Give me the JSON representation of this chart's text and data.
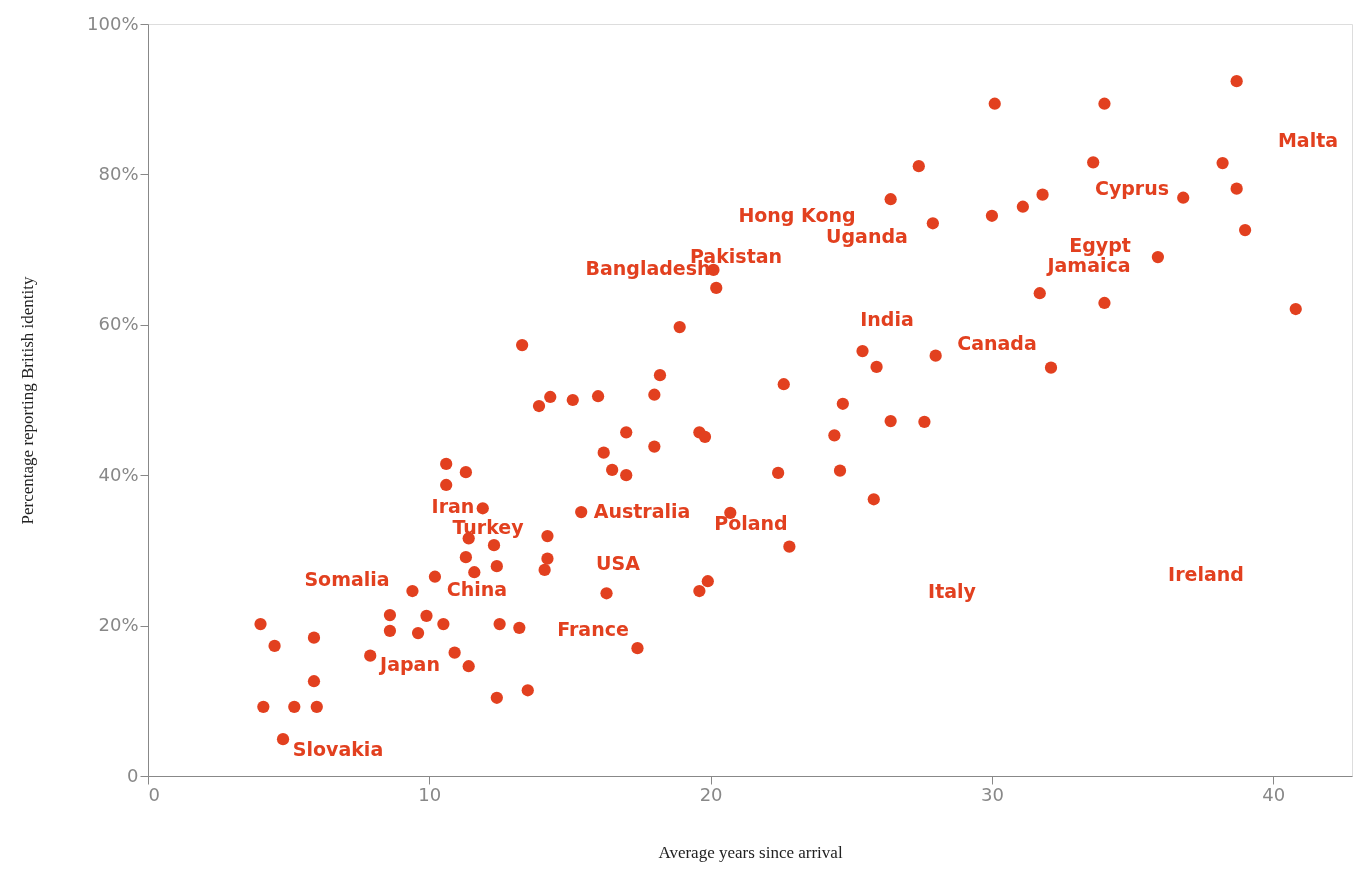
{
  "chart_data": {
    "type": "scatter",
    "xlabel": "Average years since arrival",
    "ylabel": "Percentage reporting British identity",
    "xlim": [
      0,
      42.8
    ],
    "ylim": [
      0,
      100
    ],
    "xticks": [
      0,
      10,
      20,
      30,
      40
    ],
    "yticks": [
      {
        "value": 0,
        "label": "0"
      },
      {
        "value": 20,
        "label": "20%"
      },
      {
        "value": 40,
        "label": "40%"
      },
      {
        "value": 60,
        "label": "60%"
      },
      {
        "value": 80,
        "label": "80%"
      },
      {
        "value": 100,
        "label": "100%"
      }
    ],
    "grid": false,
    "marker": "circle",
    "series": [
      {
        "color": "#e2401f",
        "x": [
          4.0,
          4.5,
          4.1,
          5.2,
          4.8,
          5.9,
          5.9,
          6.0,
          7.9,
          8.6,
          8.6,
          9.4,
          9.6,
          9.9,
          10.2,
          10.5,
          10.9,
          11.4,
          10.6,
          10.6,
          11.3,
          11.9,
          11.4,
          11.3,
          11.6,
          12.3,
          12.4,
          12.5,
          12.4,
          13.2,
          13.5,
          13.3,
          13.9,
          14.3,
          15.1,
          14.2,
          14.2,
          14.1,
          15.4,
          16.0,
          16.2,
          16.5,
          17.0,
          17.0,
          16.3,
          17.4,
          18.0,
          18.0,
          18.2,
          18.9,
          20.1,
          20.2,
          19.6,
          19.8,
          19.6,
          19.9,
          20.7,
          22.6,
          22.4,
          22.8,
          24.4,
          24.6,
          24.7,
          25.4,
          25.9,
          25.8,
          26.4,
          27.6,
          26.4,
          27.4,
          27.9,
          28.0,
          30.1,
          30.0,
          31.1,
          31.8,
          31.7,
          32.1,
          34.0,
          33.6,
          34.0,
          35.9,
          36.8,
          38.7,
          38.2,
          38.7,
          39.0,
          40.8
        ],
        "values": [
          20.2,
          17.3,
          9.2,
          9.2,
          4.9,
          18.4,
          12.6,
          9.2,
          16.0,
          21.4,
          19.3,
          24.6,
          19.0,
          21.3,
          26.5,
          20.2,
          16.4,
          14.6,
          41.5,
          38.7,
          40.4,
          35.6,
          31.6,
          29.1,
          27.1,
          30.7,
          27.9,
          20.2,
          10.4,
          19.7,
          11.4,
          57.3,
          49.2,
          50.4,
          50.0,
          31.9,
          28.9,
          27.4,
          35.1,
          50.5,
          43.0,
          40.7,
          40.0,
          45.7,
          24.3,
          17.0,
          43.8,
          50.7,
          53.3,
          59.7,
          67.3,
          64.9,
          45.7,
          45.1,
          24.6,
          25.9,
          35.0,
          52.1,
          40.3,
          30.5,
          45.3,
          40.6,
          49.5,
          56.5,
          54.4,
          36.8,
          47.2,
          47.1,
          76.7,
          81.1,
          73.5,
          55.9,
          89.4,
          74.5,
          75.7,
          77.3,
          64.2,
          54.3,
          89.4,
          81.6,
          62.9,
          69.0,
          76.9,
          92.4,
          81.5,
          78.1,
          72.6,
          62.1
        ]
      }
    ],
    "annotations": [
      "Malta",
      "Cyprus",
      "Hong Kong",
      "Uganda",
      "Egypt",
      "Jamaica",
      "Pakistan",
      "Bangladesh",
      "India",
      "Canada",
      "Iran",
      "Turkey",
      "Australia",
      "Poland",
      "USA",
      "Somalia",
      "China",
      "Ireland",
      "Italy",
      "Japan",
      "France",
      "Slovakia"
    ]
  }
}
